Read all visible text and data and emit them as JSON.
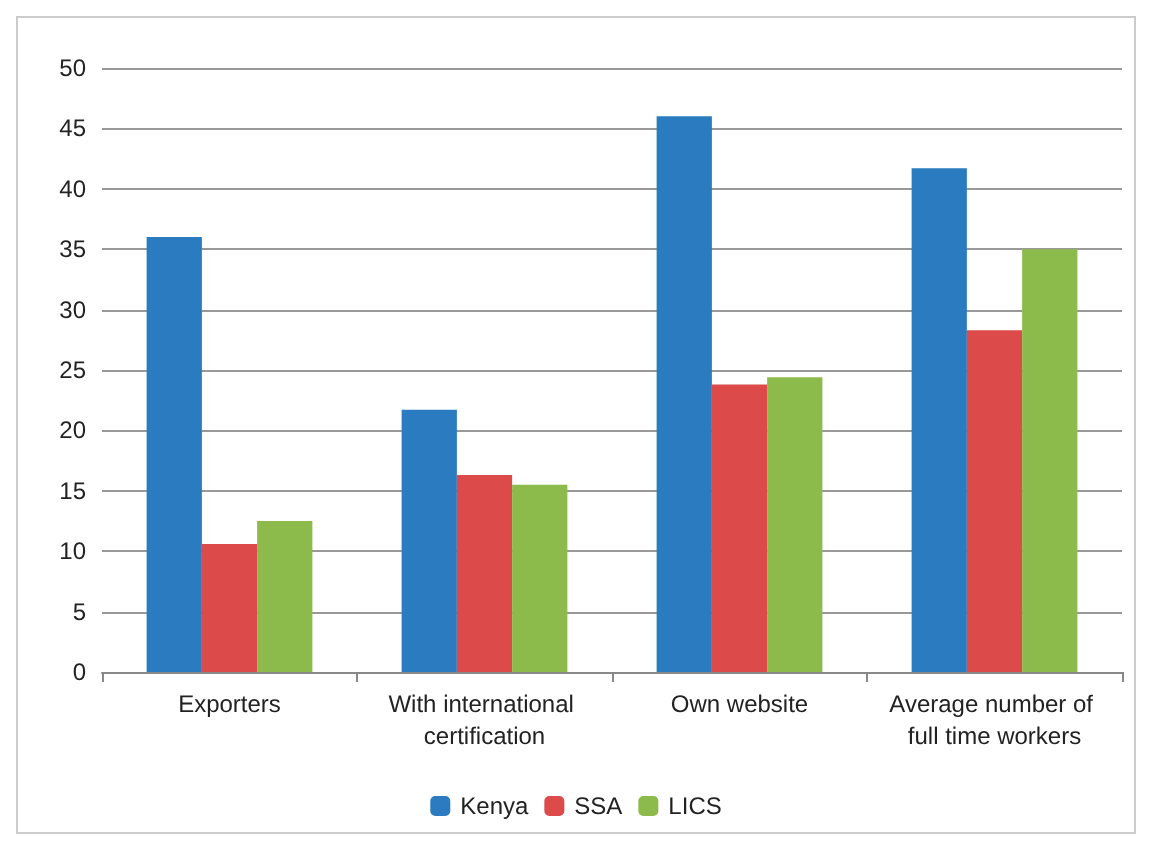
{
  "chart_data": {
    "type": "bar",
    "categories": [
      "Exporters",
      "With international certification",
      "Own website",
      "Average number of full time workers"
    ],
    "series": [
      {
        "name": "Kenya",
        "color": "#2a7bc0",
        "values": [
          36.0,
          21.7,
          46.0,
          41.7
        ]
      },
      {
        "name": "SSA",
        "color": "#dc4a4a",
        "values": [
          10.6,
          16.3,
          23.8,
          28.3
        ]
      },
      {
        "name": "LICS",
        "color": "#8cbb4c",
        "values": [
          12.5,
          15.5,
          24.4,
          35.0
        ]
      }
    ],
    "ylim": [
      0,
      50
    ],
    "yticks": [
      0,
      5,
      10,
      15,
      20,
      25,
      30,
      35,
      40,
      45,
      50
    ],
    "grid": "y",
    "legend": "bottom"
  }
}
